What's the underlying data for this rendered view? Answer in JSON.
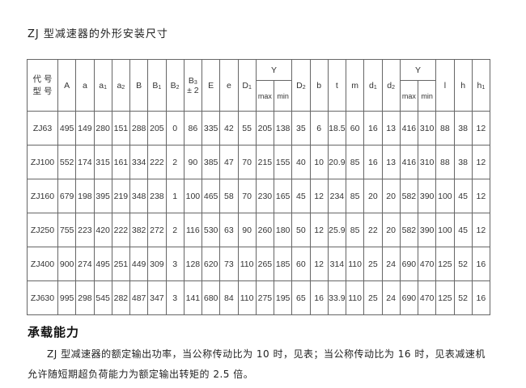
{
  "title": "ZJ 型减速器的外形安装尺寸",
  "table": {
    "first_header": [
      "代 号",
      "型 号"
    ],
    "columns": [
      {
        "label": "A",
        "sub": ""
      },
      {
        "label": "a",
        "sub": ""
      },
      {
        "label": "a",
        "sub": "1"
      },
      {
        "label": "a",
        "sub": "2"
      },
      {
        "label": "B",
        "sub": ""
      },
      {
        "label": "B",
        "sub": "1"
      },
      {
        "label": "B",
        "sub": "2"
      },
      {
        "label": "B",
        "sub": "3",
        "extra": "± 2"
      },
      {
        "label": "E",
        "sub": ""
      },
      {
        "label": "e",
        "sub": ""
      },
      {
        "label": "D",
        "sub": "1"
      },
      {
        "group": "Y",
        "subs": [
          "max",
          "min"
        ]
      },
      {
        "label": "D",
        "sub": "2"
      },
      {
        "label": "b",
        "sub": ""
      },
      {
        "label": "t",
        "sub": ""
      },
      {
        "label": "m",
        "sub": ""
      },
      {
        "label": "d",
        "sub": "1"
      },
      {
        "label": "d",
        "sub": "2"
      },
      {
        "group": "Y",
        "subs": [
          "max",
          "min"
        ]
      },
      {
        "label": "l",
        "sub": ""
      },
      {
        "label": "h",
        "sub": ""
      },
      {
        "label": "h",
        "sub": "1"
      }
    ],
    "rows": [
      [
        "ZJ63",
        "495",
        "149",
        "280",
        "151",
        "288",
        "205",
        "0",
        "86",
        "335",
        "42",
        "55",
        "205",
        "138",
        "35",
        "6",
        "18.5",
        "60",
        "16",
        "13",
        "416",
        "310",
        "88",
        "38",
        "12"
      ],
      [
        "ZJ100",
        "552",
        "174",
        "315",
        "161",
        "334",
        "222",
        "2",
        "90",
        "385",
        "47",
        "70",
        "215",
        "155",
        "40",
        "10",
        "20.9",
        "85",
        "16",
        "13",
        "416",
        "310",
        "88",
        "38",
        "12"
      ],
      [
        "ZJ160",
        "679",
        "198",
        "395",
        "219",
        "348",
        "238",
        "1",
        "100",
        "465",
        "58",
        "70",
        "230",
        "165",
        "45",
        "12",
        "234",
        "85",
        "20",
        "20",
        "582",
        "390",
        "100",
        "45",
        "12"
      ],
      [
        "ZJ250",
        "755",
        "223",
        "420",
        "222",
        "382",
        "272",
        "2",
        "116",
        "530",
        "63",
        "90",
        "260",
        "180",
        "50",
        "12",
        "25.9",
        "85",
        "22",
        "20",
        "582",
        "390",
        "100",
        "45",
        "12"
      ],
      [
        "ZJ400",
        "900",
        "274",
        "495",
        "251",
        "449",
        "309",
        "3",
        "128",
        "620",
        "73",
        "110",
        "265",
        "185",
        "60",
        "12",
        "314",
        "110",
        "25",
        "24",
        "690",
        "470",
        "125",
        "52",
        "16"
      ],
      [
        "ZJ630",
        "995",
        "298",
        "545",
        "282",
        "487",
        "347",
        "3",
        "141",
        "680",
        "84",
        "110",
        "275",
        "195",
        "65",
        "16",
        "33.9",
        "110",
        "25",
        "24",
        "690",
        "470",
        "125",
        "52",
        "16"
      ]
    ]
  },
  "section": {
    "heading": "承载能力",
    "paragraph": "ZJ 型减速器的额定输出功率，当公称传动比为 10 时，见表；当公称传动比为 16 时，见表减速机允许随短期超负荷能力为额定输出转矩的 2.5 倍。"
  }
}
